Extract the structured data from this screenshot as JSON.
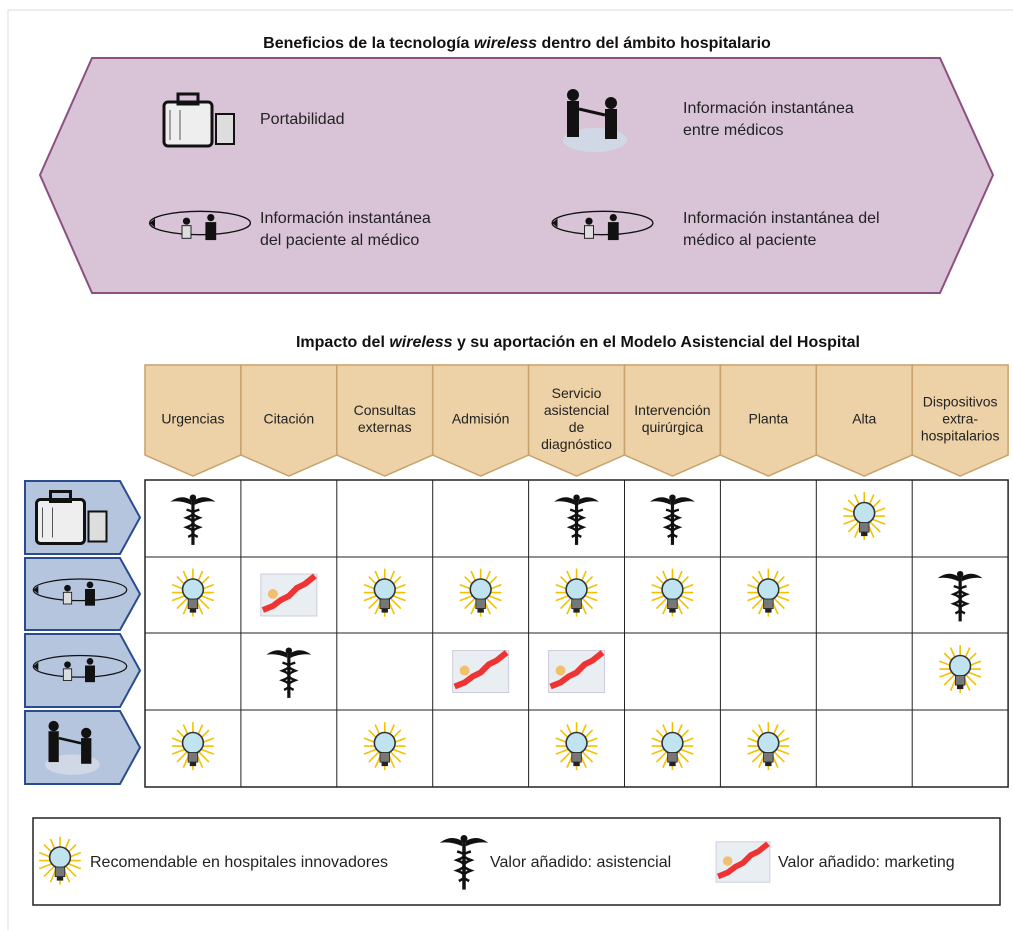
{
  "header": {
    "title": [
      "Beneficios de la tecnología ",
      "wireless",
      " dentro del ámbito hospitalario"
    ]
  },
  "benefits": [
    {
      "label": [
        "Portabilidad"
      ]
    },
    {
      "label": [
        "Información instantánea",
        "entre médicos"
      ]
    },
    {
      "label": [
        "Información instantánea",
        "del paciente al médico"
      ]
    },
    {
      "label": [
        "Información instantánea del",
        "médico al paciente"
      ]
    }
  ],
  "grid": {
    "title": [
      "Impacto del ",
      "wireless",
      " y su aportación en el Modelo Asistencial del Hospital"
    ],
    "columns": [
      [
        "Urgencias"
      ],
      [
        "Citación"
      ],
      [
        "Consultas",
        "externas"
      ],
      [
        "Admisión"
      ],
      [
        "Servicio",
        "asistencial",
        "de",
        "diagnóstico"
      ],
      [
        "Intervención",
        "quirúrgica"
      ],
      [
        "Planta"
      ],
      [
        "Alta"
      ],
      [
        "Dispositivos",
        "extra-",
        "hospitalarios"
      ]
    ]
  },
  "legend": [
    "Recomendable en hospitales innovadores",
    "Valor añadido: asistencial",
    "Valor añadido: marketing"
  ]
}
